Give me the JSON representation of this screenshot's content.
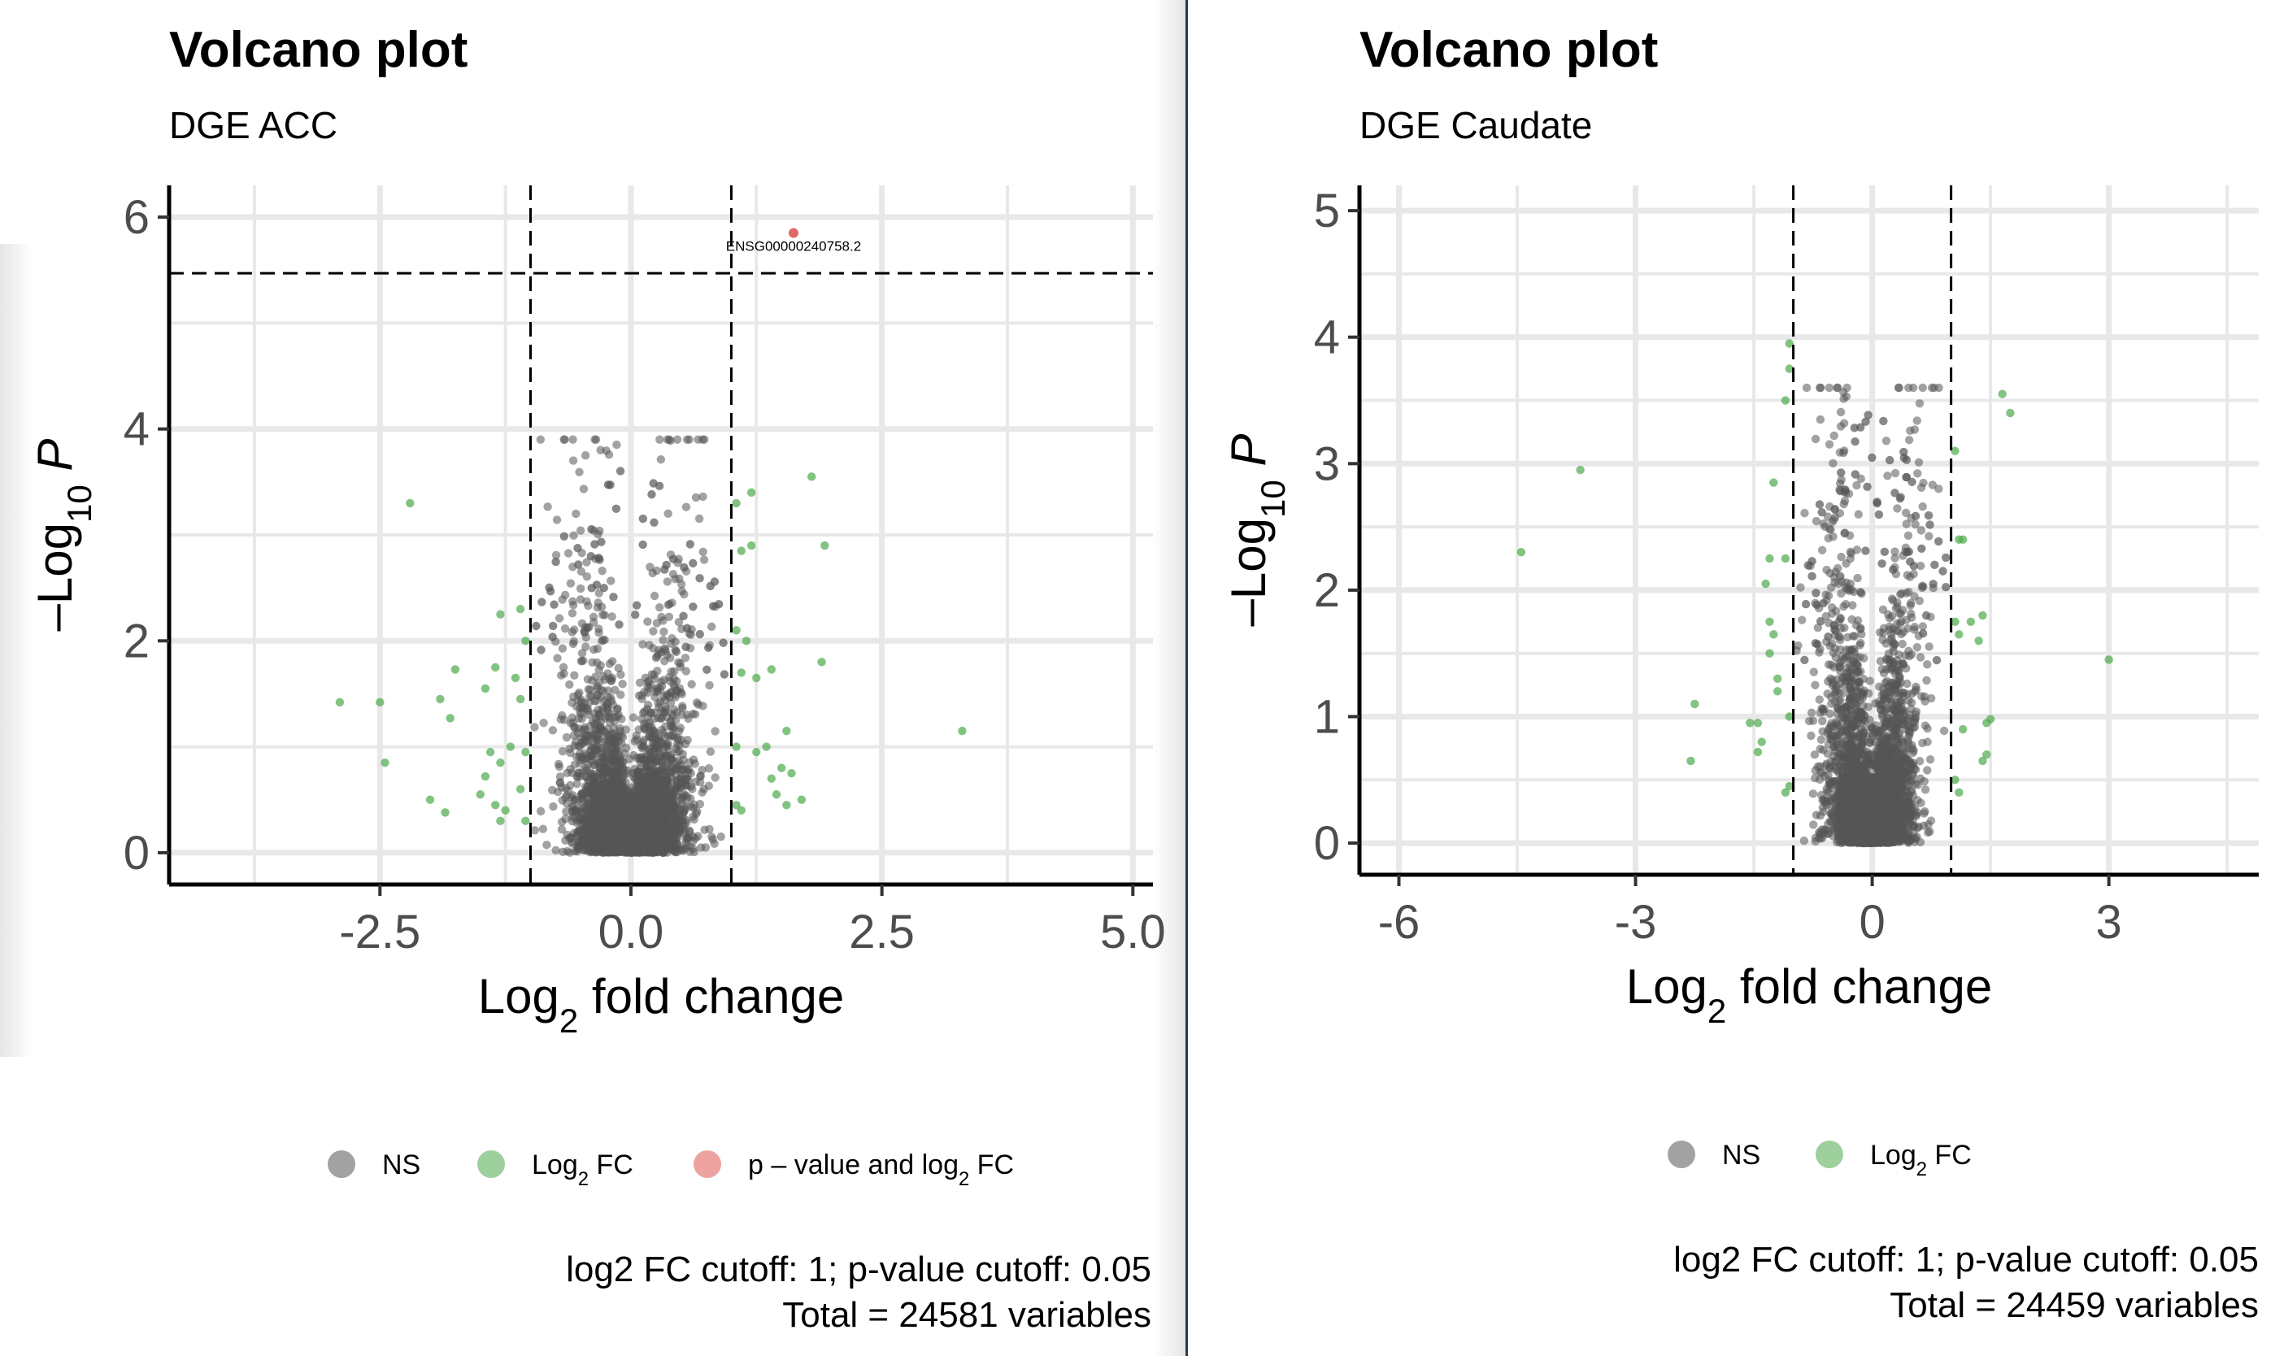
{
  "legend_labels": {
    "ns": "NS",
    "log2fc_base": "Log",
    "log2fc_sub": "2",
    "log2fc_tail": " FC",
    "pv_base": "p – value and log",
    "pv_sub": "2",
    "pv_tail": " FC"
  },
  "axis_text": {
    "y_prefix": "–Log",
    "y_sub": "10",
    "y_p": "P",
    "x_base": "Log",
    "x_sub": "2",
    "x_tail": " fold change"
  },
  "colors": {
    "ns": "#555555",
    "log2fc": "#4daa4d",
    "pv_and_fc": "#e05555",
    "grid": "#e8e8e8"
  },
  "chart_data": [
    {
      "type": "scatter",
      "title": "Volcano plot",
      "subtitle": "DGE ACC",
      "xlim": [
        -4.6,
        5.2
      ],
      "ylim": [
        -0.3,
        6.3
      ],
      "x_ticks": [
        -2.5,
        0.0,
        2.5,
        5.0
      ],
      "x_tick_labels": [
        "-2.5",
        "0.0",
        "2.5",
        "5.0"
      ],
      "y_ticks": [
        0,
        2,
        4,
        6
      ],
      "y_tick_labels": [
        "0",
        "2",
        "4",
        "6"
      ],
      "grid": true,
      "fc_cutoff": 1,
      "p_cutoff_line": 5.47,
      "legend": [
        "NS",
        "Log2 FC",
        "p - value and log2 FC"
      ],
      "legend_placement": "bottom",
      "caption_line1": "log2 FC cutoff: 1; p-value cutoff: 0.05",
      "caption_line2": "Total = 24581 variables",
      "annotation": {
        "label": "ENSG00000240758.2",
        "x": 1.62,
        "y": 5.85
      },
      "highlight_points": [
        [
          1.62,
          5.85
        ]
      ],
      "fc_points": [
        [
          -2.2,
          3.3
        ],
        [
          -2.9,
          1.42
        ],
        [
          -2.5,
          1.42
        ],
        [
          -2.45,
          0.85
        ],
        [
          -2.0,
          0.5
        ],
        [
          -1.85,
          0.38
        ],
        [
          -1.75,
          1.73
        ],
        [
          -1.9,
          1.45
        ],
        [
          -1.8,
          1.27
        ],
        [
          -1.45,
          1.55
        ],
        [
          -1.35,
          1.75
        ],
        [
          -1.4,
          0.95
        ],
        [
          -1.3,
          0.85
        ],
        [
          -1.45,
          0.72
        ],
        [
          -1.5,
          0.55
        ],
        [
          -1.35,
          0.45
        ],
        [
          -1.25,
          0.4
        ],
        [
          -1.3,
          0.3
        ],
        [
          -1.15,
          1.65
        ],
        [
          -1.1,
          1.45
        ],
        [
          -1.2,
          1.0
        ],
        [
          -1.05,
          0.95
        ],
        [
          -1.1,
          0.6
        ],
        [
          -1.05,
          0.3
        ],
        [
          -1.3,
          2.25
        ],
        [
          -1.1,
          2.3
        ],
        [
          -1.05,
          2.0
        ],
        [
          1.05,
          3.3
        ],
        [
          1.2,
          3.4
        ],
        [
          1.1,
          2.85
        ],
        [
          1.2,
          2.9
        ],
        [
          1.05,
          2.1
        ],
        [
          1.15,
          2.0
        ],
        [
          1.1,
          1.7
        ],
        [
          1.25,
          1.65
        ],
        [
          1.4,
          1.73
        ],
        [
          1.55,
          1.15
        ],
        [
          1.25,
          0.95
        ],
        [
          1.35,
          1.0
        ],
        [
          1.5,
          0.8
        ],
        [
          1.6,
          0.75
        ],
        [
          1.4,
          0.7
        ],
        [
          1.45,
          0.55
        ],
        [
          1.55,
          0.45
        ],
        [
          1.7,
          0.5
        ],
        [
          1.05,
          0.45
        ],
        [
          1.1,
          0.4
        ],
        [
          1.05,
          1.0
        ],
        [
          1.8,
          3.55
        ],
        [
          1.93,
          2.9
        ],
        [
          1.9,
          1.8
        ],
        [
          3.3,
          1.15
        ]
      ]
    },
    {
      "type": "scatter",
      "title": "Volcano plot",
      "subtitle": "DGE Caudate",
      "xlim": [
        -6.5,
        4.9
      ],
      "ylim": [
        -0.25,
        5.2
      ],
      "x_ticks": [
        -6,
        -3,
        0,
        3
      ],
      "x_tick_labels": [
        "-6",
        "-3",
        "0",
        "3"
      ],
      "y_ticks": [
        0,
        1,
        2,
        3,
        4,
        5
      ],
      "y_tick_labels": [
        "0",
        "1",
        "2",
        "3",
        "4",
        "5"
      ],
      "grid": true,
      "fc_cutoff": 1,
      "p_cutoff_line": null,
      "legend": [
        "NS",
        "Log2 FC"
      ],
      "legend_placement": "bottom",
      "caption_line1": "log2 FC cutoff: 1; p-value cutoff: 0.05",
      "caption_line2": "Total = 24459 variables",
      "annotation": null,
      "highlight_points": [],
      "fc_points": [
        [
          -4.45,
          2.3
        ],
        [
          -3.7,
          2.95
        ],
        [
          -2.25,
          1.1
        ],
        [
          -2.3,
          0.65
        ],
        [
          -1.55,
          0.95
        ],
        [
          -1.45,
          0.95
        ],
        [
          -1.4,
          0.8
        ],
        [
          -1.45,
          0.72
        ],
        [
          -1.35,
          2.05
        ],
        [
          -1.25,
          2.85
        ],
        [
          -1.3,
          1.75
        ],
        [
          -1.25,
          1.65
        ],
        [
          -1.3,
          1.5
        ],
        [
          -1.2,
          1.3
        ],
        [
          -1.2,
          1.2
        ],
        [
          -1.3,
          2.25
        ],
        [
          -1.1,
          2.25
        ],
        [
          -1.05,
          3.95
        ],
        [
          -1.05,
          3.75
        ],
        [
          -1.1,
          3.5
        ],
        [
          -1.05,
          0.45
        ],
        [
          -1.1,
          0.4
        ],
        [
          -1.05,
          1.0
        ],
        [
          1.05,
          3.1
        ],
        [
          1.1,
          2.4
        ],
        [
          1.15,
          2.4
        ],
        [
          1.05,
          1.75
        ],
        [
          1.1,
          1.65
        ],
        [
          1.25,
          1.75
        ],
        [
          1.35,
          1.6
        ],
        [
          1.4,
          1.8
        ],
        [
          1.45,
          0.95
        ],
        [
          1.5,
          0.98
        ],
        [
          1.45,
          0.7
        ],
        [
          1.4,
          0.65
        ],
        [
          1.15,
          0.9
        ],
        [
          1.1,
          0.4
        ],
        [
          1.05,
          0.5
        ],
        [
          1.65,
          3.55
        ],
        [
          1.75,
          3.4
        ],
        [
          3.0,
          1.45
        ]
      ]
    }
  ]
}
